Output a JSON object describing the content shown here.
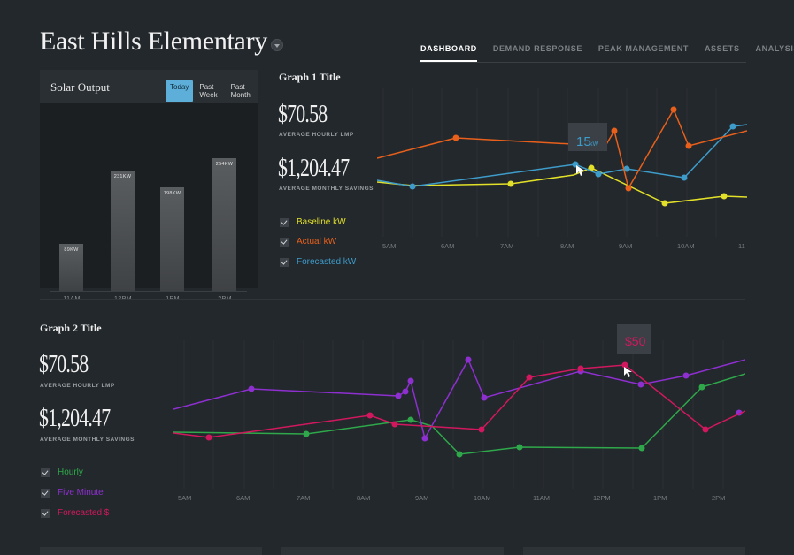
{
  "header": {
    "school_name": "East Hills Elementary",
    "nav": [
      "DASHBOARD",
      "DEMAND RESPONSE",
      "PEAK MANAGEMENT",
      "ASSETS",
      "ANALYSIS"
    ],
    "active_tab": "DASHBOARD"
  },
  "solar": {
    "title": "Solar Output",
    "tabs": [
      "Today",
      "Past Week",
      "Past Month"
    ],
    "active_tab": "Today",
    "bars": [
      {
        "label": "89KW",
        "category": "11AM",
        "value": 89
      },
      {
        "label": "231KW",
        "category": "12PM",
        "value": 231
      },
      {
        "label": "198KW",
        "category": "1PM",
        "value": 198
      },
      {
        "label": "254KW",
        "category": "2PM",
        "value": 254
      }
    ]
  },
  "graph1": {
    "title": "Graph 1 Title",
    "metric1_value": "$70.58",
    "metric1_label": "AVERAGE HOURLY LMP",
    "metric2_value": "$1,204.47",
    "metric2_label": "AVERAGE MONTHLY SAVINGS",
    "legend": [
      {
        "label": "Baseline kW",
        "color": "#e2e028"
      },
      {
        "label": "Actual kW",
        "color": "#e8601c"
      },
      {
        "label": "Forecasted kW",
        "color": "#3e9ccb"
      }
    ],
    "tooltip_value": "15",
    "tooltip_unit": "kW",
    "x_ticks": [
      "5AM",
      "6AM",
      "7AM",
      "8AM",
      "9AM",
      "10AM",
      "11"
    ]
  },
  "graph2": {
    "title": "Graph 2 Title",
    "metric1_value": "$70.58",
    "metric1_label": "AVERAGE HOURLY LMP",
    "metric2_value": "$1,204.47",
    "metric2_label": "AVERAGE MONTHLY SAVINGS",
    "legend": [
      {
        "label": "Hourly",
        "color": "#2ea84a"
      },
      {
        "label": "Five Minute",
        "color": "#8e2fd0"
      },
      {
        "label": "Forecasted $",
        "color": "#d1185f"
      }
    ],
    "tooltip_value": "$50",
    "x_ticks": [
      "5AM",
      "6AM",
      "7AM",
      "8AM",
      "9AM",
      "10AM",
      "11AM",
      "12PM",
      "1PM",
      "2PM"
    ]
  }
}
